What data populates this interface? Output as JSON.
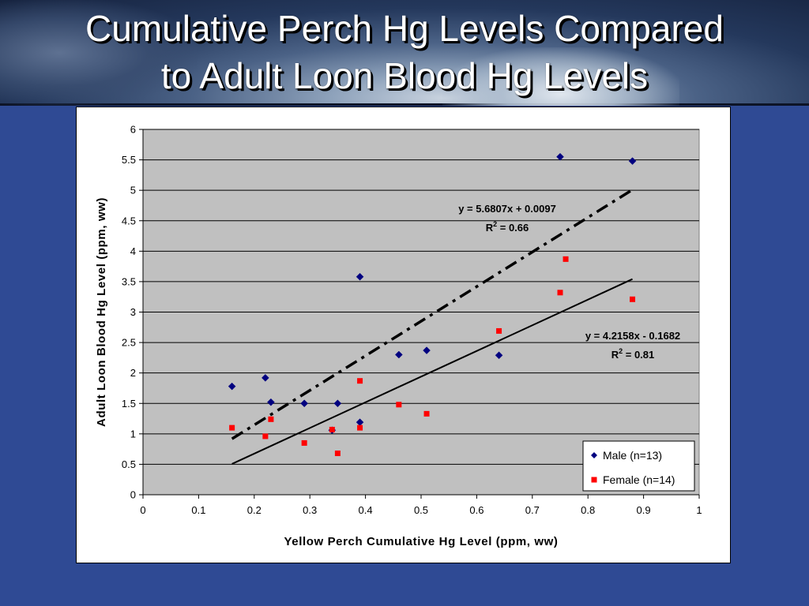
{
  "slide": {
    "title_line1": "Cumulative Perch Hg Levels Compared",
    "title_line2": "to Adult Loon Blood Hg Levels"
  },
  "chart_data": {
    "type": "scatter",
    "title": "Cumulative Perch Hg Levels Compared to Adult Loon Blood Hg Levels",
    "xlabel": "Yellow Perch Cumulative Hg Level (ppm, ww)",
    "ylabel": "Adult Loon Blood Hg Level (ppm, ww)",
    "xlim": [
      0,
      1
    ],
    "ylim": [
      0,
      6
    ],
    "x_ticks": [
      "0",
      "0.1",
      "0.2",
      "0.3",
      "0.4",
      "0.5",
      "0.6",
      "0.7",
      "0.8",
      "0.9",
      "1"
    ],
    "y_ticks": [
      "0",
      "0.5",
      "1",
      "1.5",
      "2",
      "2.5",
      "3",
      "3.5",
      "4",
      "4.5",
      "5",
      "5.5",
      "6"
    ],
    "grid": "horizontal",
    "plot_background": "#c0c0c0",
    "legend_position": "bottom-right",
    "series": [
      {
        "name": "Male (n=13)",
        "marker": "diamond",
        "color": "#000080",
        "points": [
          {
            "x": 0.16,
            "y": 1.78
          },
          {
            "x": 0.22,
            "y": 1.92
          },
          {
            "x": 0.23,
            "y": 1.52
          },
          {
            "x": 0.29,
            "y": 1.5
          },
          {
            "x": 0.34,
            "y": 1.06
          },
          {
            "x": 0.35,
            "y": 1.5
          },
          {
            "x": 0.39,
            "y": 3.58
          },
          {
            "x": 0.39,
            "y": 1.19
          },
          {
            "x": 0.46,
            "y": 2.3
          },
          {
            "x": 0.51,
            "y": 2.37
          },
          {
            "x": 0.64,
            "y": 2.29
          },
          {
            "x": 0.75,
            "y": 5.55
          },
          {
            "x": 0.88,
            "y": 5.48
          }
        ]
      },
      {
        "name": "Female (n=14)",
        "marker": "square",
        "color": "#ff0000",
        "points": [
          {
            "x": 0.16,
            "y": 1.1
          },
          {
            "x": 0.22,
            "y": 0.96
          },
          {
            "x": 0.23,
            "y": 1.24
          },
          {
            "x": 0.29,
            "y": 0.85
          },
          {
            "x": 0.34,
            "y": 1.07
          },
          {
            "x": 0.35,
            "y": 0.68
          },
          {
            "x": 0.39,
            "y": 1.87
          },
          {
            "x": 0.39,
            "y": 1.1
          },
          {
            "x": 0.46,
            "y": 1.48
          },
          {
            "x": 0.51,
            "y": 1.33
          },
          {
            "x": 0.64,
            "y": 2.69
          },
          {
            "x": 0.75,
            "y": 3.32
          },
          {
            "x": 0.76,
            "y": 3.87
          },
          {
            "x": 0.88,
            "y": 3.21
          }
        ]
      }
    ],
    "trendlines": [
      {
        "series": "Male (n=13)",
        "style": "dash-dot",
        "slope": 5.6807,
        "intercept": 0.0097,
        "x_range": [
          0.16,
          0.88
        ],
        "equation": "y = 5.6807x + 0.0097",
        "r2_label": "= 0.66"
      },
      {
        "series": "Female (n=14)",
        "style": "solid",
        "slope": 4.2158,
        "intercept": -0.1682,
        "x_range": [
          0.16,
          0.88
        ],
        "equation": "y = 4.2158x - 0.1682",
        "r2_label": "= 0.81"
      }
    ]
  }
}
